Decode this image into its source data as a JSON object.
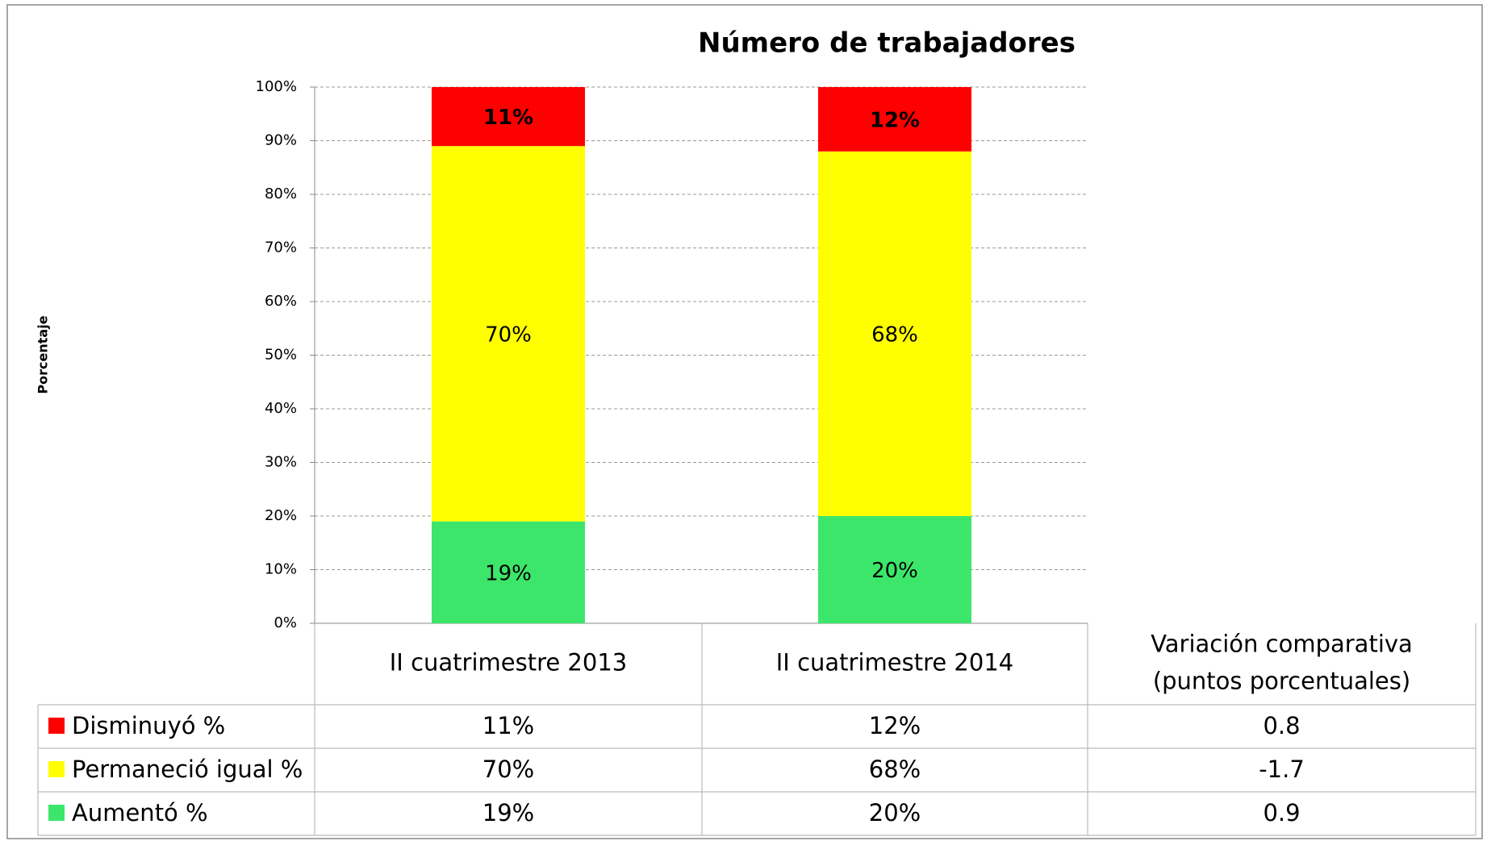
{
  "chart_data": {
    "type": "stacked_bar",
    "title": "Número de trabajadores",
    "y_label": "Porcentaje",
    "categories": [
      "II cuatrimestre 2013",
      "II cuatrimestre 2014"
    ],
    "series": [
      {
        "name": "Disminuyó %",
        "color": "#ff0000",
        "label_color": "#ffffff",
        "values": [
          11,
          12
        ],
        "value_labels": [
          "11%",
          "12%"
        ]
      },
      {
        "name": "Permaneció igual %",
        "color": "#ffff00",
        "label_color": "#000000",
        "values": [
          70,
          68
        ],
        "value_labels": [
          "70%",
          "68%"
        ]
      },
      {
        "name": "Aumentó %",
        "color": "#3ce66a",
        "label_color": "#000000",
        "values": [
          19,
          20
        ],
        "value_labels": [
          "19%",
          "20%"
        ]
      }
    ],
    "variation": {
      "label": [
        "Variación comparativa",
        "(puntos porcentuales)"
      ],
      "values": [
        0.8,
        -1.7,
        0.9
      ]
    },
    "ylim": [
      0,
      100
    ],
    "yticks": [
      {
        "value": 0,
        "label": "0%"
      },
      {
        "value": 10,
        "label": "10%"
      },
      {
        "value": 20,
        "label": "20%"
      },
      {
        "value": 30,
        "label": "30%"
      },
      {
        "value": 40,
        "label": "40%"
      },
      {
        "value": 50,
        "label": "50%"
      },
      {
        "value": 60,
        "label": "60%"
      },
      {
        "value": 70,
        "label": "70%"
      },
      {
        "value": 80,
        "label": "80%"
      },
      {
        "value": 90,
        "label": "90%"
      },
      {
        "value": 100,
        "label": "100%"
      }
    ],
    "grid": true
  }
}
